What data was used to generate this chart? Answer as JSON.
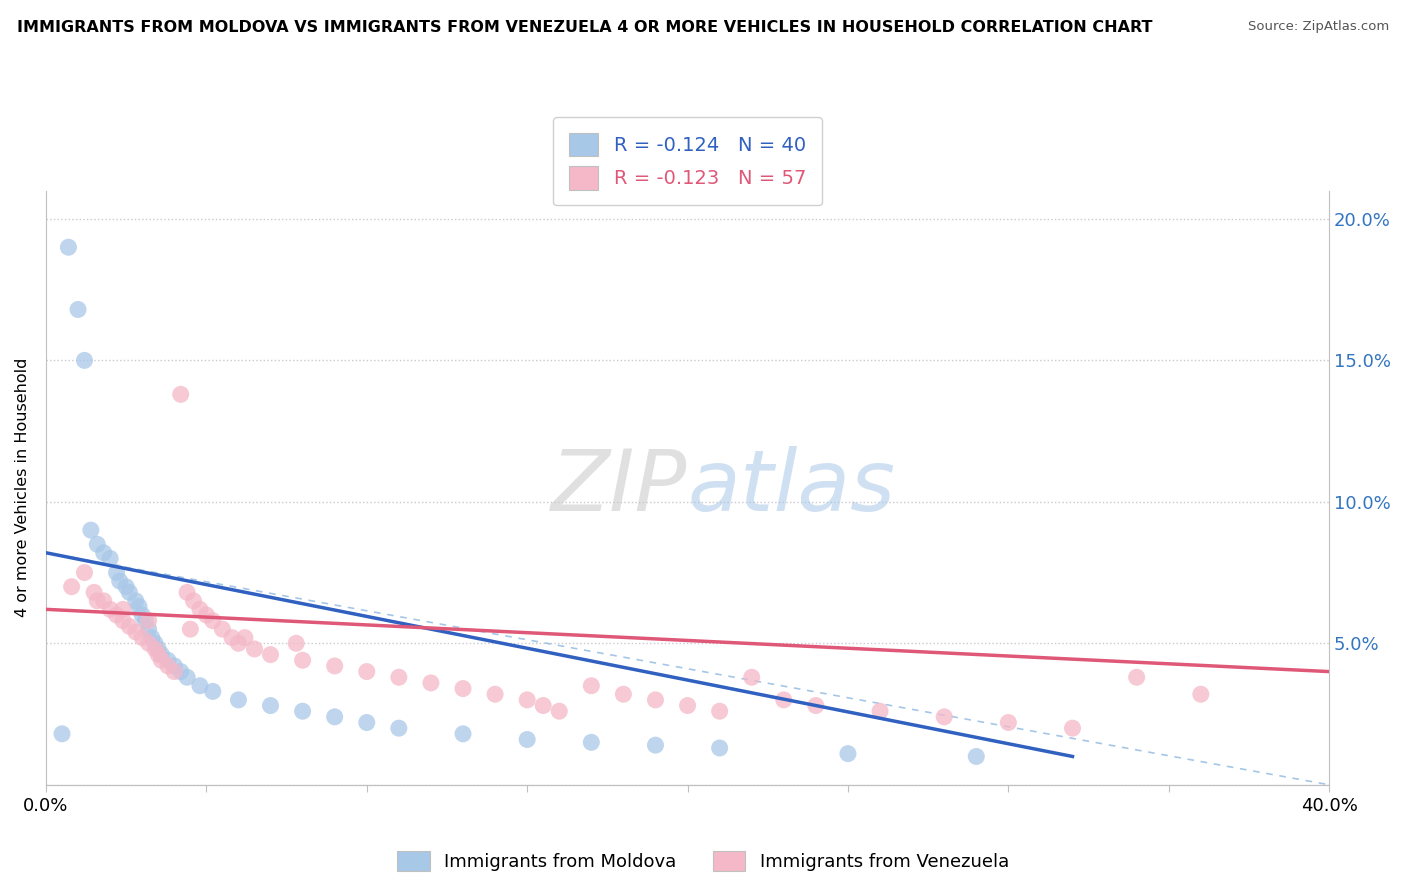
{
  "title": "IMMIGRANTS FROM MOLDOVA VS IMMIGRANTS FROM VENEZUELA 4 OR MORE VEHICLES IN HOUSEHOLD CORRELATION CHART",
  "source": "Source: ZipAtlas.com",
  "ylabel": "4 or more Vehicles in Household",
  "legend_moldova": "Immigrants from Moldova",
  "legend_venezuela": "Immigrants from Venezuela",
  "moldova_R": "-0.124",
  "moldova_N": "40",
  "venezuela_R": "-0.123",
  "venezuela_N": "57",
  "xlim": [
    0.0,
    0.4
  ],
  "ylim": [
    0.0,
    0.21
  ],
  "moldova_color": "#a8c8e8",
  "venezuela_color": "#f4b8c8",
  "moldova_line_color": "#3060c0",
  "venezuela_line_color": "#e05878",
  "background_color": "#ffffff",
  "grid_color": "#c8c8d0",
  "moldova_x": [
    0.007,
    0.01,
    0.012,
    0.014,
    0.016,
    0.018,
    0.02,
    0.022,
    0.023,
    0.025,
    0.026,
    0.028,
    0.029,
    0.03,
    0.031,
    0.032,
    0.033,
    0.034,
    0.035,
    0.036,
    0.038,
    0.04,
    0.042,
    0.044,
    0.048,
    0.052,
    0.06,
    0.07,
    0.08,
    0.09,
    0.1,
    0.11,
    0.13,
    0.15,
    0.17,
    0.19,
    0.21,
    0.25,
    0.29,
    0.005
  ],
  "moldova_y": [
    0.19,
    0.168,
    0.15,
    0.09,
    0.085,
    0.082,
    0.08,
    0.075,
    0.072,
    0.07,
    0.068,
    0.065,
    0.063,
    0.06,
    0.058,
    0.055,
    0.052,
    0.05,
    0.048,
    0.046,
    0.044,
    0.042,
    0.04,
    0.038,
    0.035,
    0.033,
    0.03,
    0.028,
    0.026,
    0.024,
    0.022,
    0.02,
    0.018,
    0.016,
    0.015,
    0.014,
    0.013,
    0.011,
    0.01,
    0.018
  ],
  "venezuela_x": [
    0.012,
    0.015,
    0.018,
    0.02,
    0.022,
    0.024,
    0.026,
    0.028,
    0.03,
    0.032,
    0.034,
    0.035,
    0.036,
    0.038,
    0.04,
    0.042,
    0.044,
    0.046,
    0.048,
    0.05,
    0.052,
    0.055,
    0.058,
    0.06,
    0.065,
    0.07,
    0.08,
    0.09,
    0.1,
    0.11,
    0.12,
    0.13,
    0.14,
    0.15,
    0.155,
    0.16,
    0.17,
    0.18,
    0.19,
    0.2,
    0.21,
    0.22,
    0.23,
    0.24,
    0.26,
    0.28,
    0.3,
    0.32,
    0.34,
    0.36,
    0.008,
    0.016,
    0.024,
    0.032,
    0.045,
    0.062,
    0.078
  ],
  "venezuela_y": [
    0.075,
    0.068,
    0.065,
    0.062,
    0.06,
    0.058,
    0.056,
    0.054,
    0.052,
    0.05,
    0.048,
    0.046,
    0.044,
    0.042,
    0.04,
    0.138,
    0.068,
    0.065,
    0.062,
    0.06,
    0.058,
    0.055,
    0.052,
    0.05,
    0.048,
    0.046,
    0.044,
    0.042,
    0.04,
    0.038,
    0.036,
    0.034,
    0.032,
    0.03,
    0.028,
    0.026,
    0.035,
    0.032,
    0.03,
    0.028,
    0.026,
    0.038,
    0.03,
    0.028,
    0.026,
    0.024,
    0.022,
    0.02,
    0.038,
    0.032,
    0.07,
    0.065,
    0.062,
    0.058,
    0.055,
    0.052,
    0.05
  ],
  "moldova_line_x0": 0.0,
  "moldova_line_y0": 0.082,
  "moldova_line_x1": 0.32,
  "moldova_line_y1": 0.01,
  "venezuela_line_x0": 0.0,
  "venezuela_line_y0": 0.062,
  "venezuela_line_x1": 0.4,
  "venezuela_line_y1": 0.04,
  "dash_line_x0": 0.0,
  "dash_line_y0": 0.082,
  "dash_line_x1": 0.4,
  "dash_line_y1": 0.0
}
